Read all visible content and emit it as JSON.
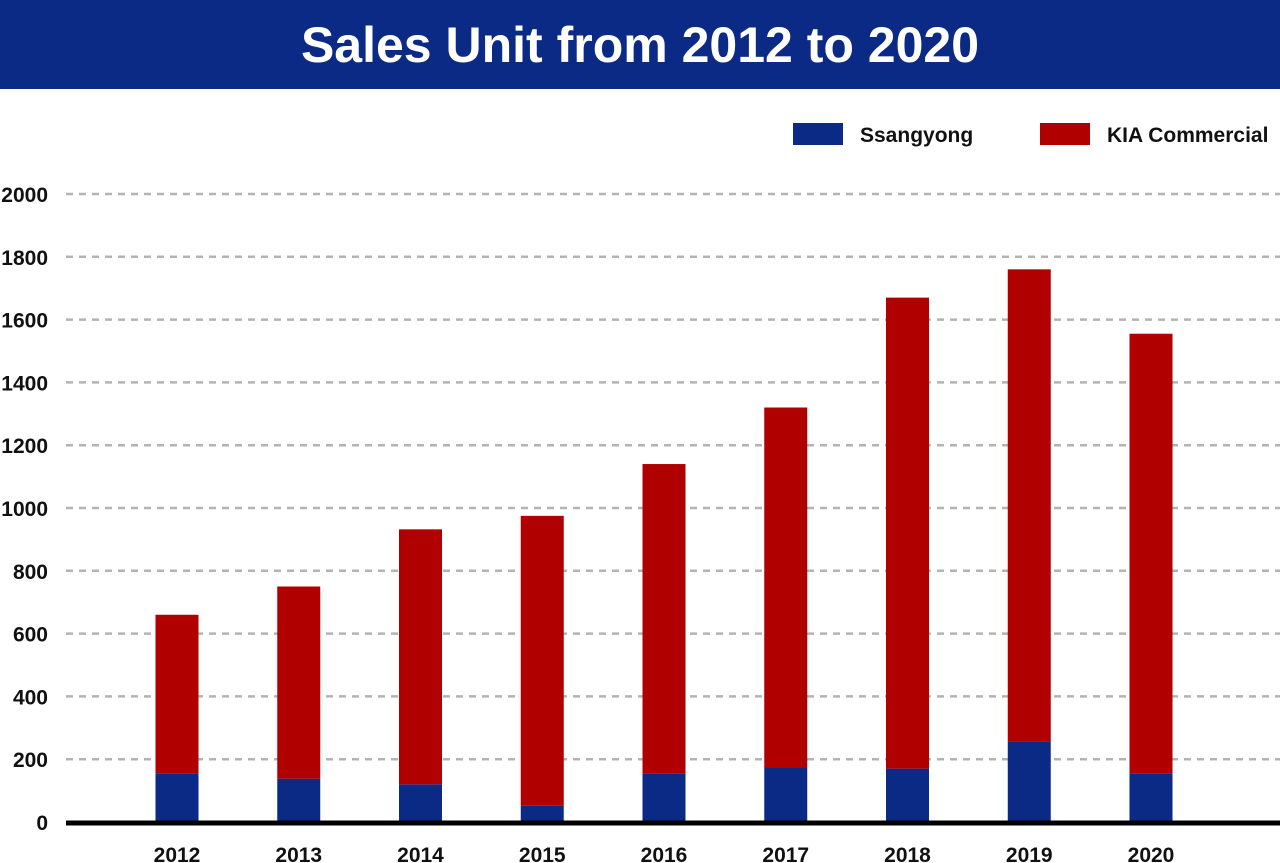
{
  "chart_data": {
    "type": "bar",
    "stacked": true,
    "title": "Sales Unit from 2012 to 2020",
    "xlabel": "",
    "ylabel": "",
    "categories": [
      "2012",
      "2013",
      "2014",
      "2015",
      "2016",
      "2017",
      "2018",
      "2019",
      "2020"
    ],
    "series": [
      {
        "name": "Ssangyong",
        "color": "#0a2a85",
        "values": [
          155,
          138,
          120,
          52,
          155,
          175,
          170,
          255,
          155
        ]
      },
      {
        "name": "KIA Commercial",
        "color": "#b00000",
        "values": [
          505,
          612,
          812,
          923,
          985,
          1145,
          1500,
          1505,
          1400
        ]
      }
    ],
    "ylim": [
      0,
      2000
    ],
    "yticks": [
      "0",
      "200",
      "400",
      "600",
      "800",
      "1000",
      "1200",
      "1400",
      "1600",
      "1800",
      "2000"
    ],
    "grid": true,
    "grid_style": "dashed",
    "legend_position": "top-right"
  }
}
